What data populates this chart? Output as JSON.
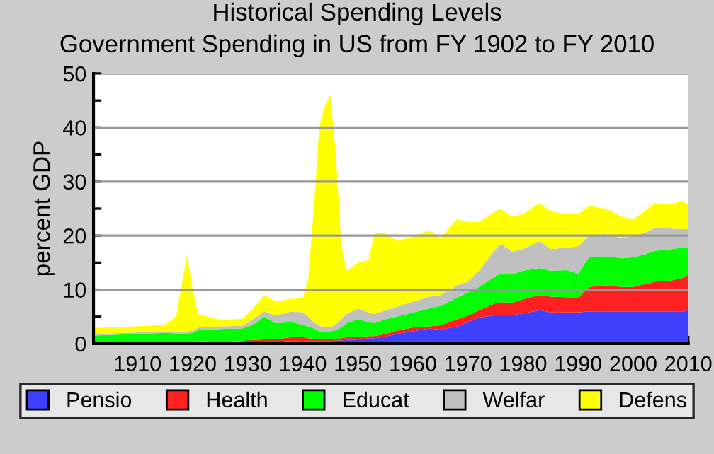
{
  "chart_data": {
    "type": "area",
    "stacked": true,
    "title": "Historical Spending Levels",
    "subtitle": "Government Spending in US from FY 1902 to FY 2010",
    "ylabel": "percent GDP",
    "x": [
      1902,
      1910,
      1915,
      1917,
      1919,
      1920,
      1921,
      1925,
      1929,
      1931,
      1933,
      1935,
      1938,
      1940,
      1941,
      1942,
      1943,
      1944,
      1945,
      1946,
      1947,
      1948,
      1950,
      1952,
      1953,
      1955,
      1957,
      1960,
      1963,
      1965,
      1968,
      1970,
      1972,
      1975,
      1976,
      1978,
      1980,
      1983,
      1985,
      1988,
      1990,
      1992,
      1995,
      1998,
      2000,
      2002,
      2004,
      2007,
      2009,
      2010
    ],
    "series": [
      {
        "name": "Pensio",
        "color": "#4040ff",
        "values": [
          0,
          0,
          0,
          0,
          0,
          0,
          0,
          0,
          0.1,
          0.2,
          0.3,
          0.3,
          0.5,
          0.5,
          0.5,
          0.5,
          0.5,
          0.5,
          0.5,
          0.6,
          0.6,
          0.7,
          0.7,
          1.0,
          1.0,
          1.3,
          1.8,
          2.3,
          2.8,
          2.6,
          3.2,
          4.0,
          4.8,
          5.3,
          5.3,
          5.3,
          5.6,
          6.2,
          5.8,
          5.8,
          5.8,
          6.0,
          6.0,
          6.0,
          6.0,
          6.0,
          6.0,
          6.0,
          6.0,
          6.2
        ]
      },
      {
        "name": "Health",
        "color": "#ff2020",
        "values": [
          0.3,
          0.3,
          0.3,
          0.3,
          0.3,
          0.3,
          0.5,
          0.3,
          0.4,
          0.5,
          0.5,
          0.5,
          0.7,
          0.7,
          0.5,
          0.4,
          0.3,
          0.3,
          0.3,
          0.3,
          0.4,
          0.5,
          0.5,
          0.4,
          0.4,
          0.5,
          0.6,
          0.7,
          0.4,
          0.8,
          1.3,
          1.2,
          1.4,
          2.2,
          2.4,
          2.3,
          2.6,
          2.8,
          2.9,
          2.8,
          2.6,
          4.5,
          4.8,
          4.5,
          4.5,
          5.0,
          5.5,
          5.7,
          6.2,
          6.6
        ]
      },
      {
        "name": "Educat",
        "color": "#00ff00",
        "values": [
          1.2,
          1.5,
          1.7,
          1.6,
          1.6,
          1.7,
          2.0,
          2.4,
          2.3,
          2.8,
          4.2,
          3.0,
          2.8,
          2.3,
          2.2,
          1.9,
          1.5,
          1.4,
          1.5,
          1.6,
          2.0,
          2.6,
          3.3,
          2.6,
          2.4,
          2.7,
          2.6,
          2.8,
          3.3,
          3.6,
          4.0,
          4.3,
          4.3,
          5.0,
          5.3,
          5.2,
          5.3,
          5.0,
          4.8,
          5.0,
          4.6,
          5.5,
          5.4,
          5.3,
          5.5,
          5.5,
          5.7,
          5.8,
          5.6,
          5.0
        ]
      },
      {
        "name": "Welfar",
        "color": "#c0c0c0",
        "values": [
          0.3,
          0.3,
          0.3,
          0.3,
          0.4,
          0.4,
          0.5,
          0.5,
          0.5,
          1.0,
          1.0,
          1.4,
          2.0,
          2.3,
          1.8,
          1.2,
          1.0,
          0.8,
          0.7,
          1.0,
          1.5,
          1.7,
          2.0,
          1.8,
          1.7,
          1.7,
          1.8,
          2.0,
          2.2,
          2.0,
          2.3,
          2.0,
          3.0,
          5.0,
          5.5,
          4.2,
          4.0,
          5.0,
          4.0,
          4.2,
          5.0,
          4.0,
          4.1,
          3.7,
          4.0,
          4.0,
          4.3,
          3.8,
          3.4,
          3.4
        ]
      },
      {
        "name": "Defens",
        "color": "#ffff00",
        "values": [
          1.1,
          1.1,
          1.2,
          2.8,
          14.2,
          7.6,
          2.5,
          1.2,
          1.3,
          2.0,
          3.0,
          2.6,
          2.3,
          2.7,
          7.0,
          21.0,
          36.7,
          41.0,
          43.0,
          31.5,
          13.5,
          8.0,
          8.5,
          9.7,
          15.0,
          14.3,
          12.2,
          12.0,
          12.3,
          10.5,
          12.2,
          11.0,
          9.0,
          7.0,
          6.5,
          6.5,
          6.5,
          7.0,
          7.0,
          6.2,
          6.0,
          5.5,
          4.7,
          4.0,
          3.0,
          4.0,
          4.5,
          4.5,
          5.3,
          4.3
        ]
      }
    ],
    "xlim": [
      1902,
      2010
    ],
    "xticks": [
      1910,
      1920,
      1930,
      1940,
      1950,
      1960,
      1970,
      1980,
      1990,
      2000,
      2010
    ],
    "ylim": [
      0,
      50
    ],
    "yticks": [
      0,
      {
        "value": 5,
        "label": null
      },
      10,
      {
        "value": 15,
        "label": null
      },
      20,
      {
        "value": 25,
        "label": null
      },
      30,
      {
        "value": 35,
        "label": null
      },
      40,
      {
        "value": 45,
        "label": null
      },
      50
    ],
    "grid": "y",
    "legend": "bottom"
  }
}
